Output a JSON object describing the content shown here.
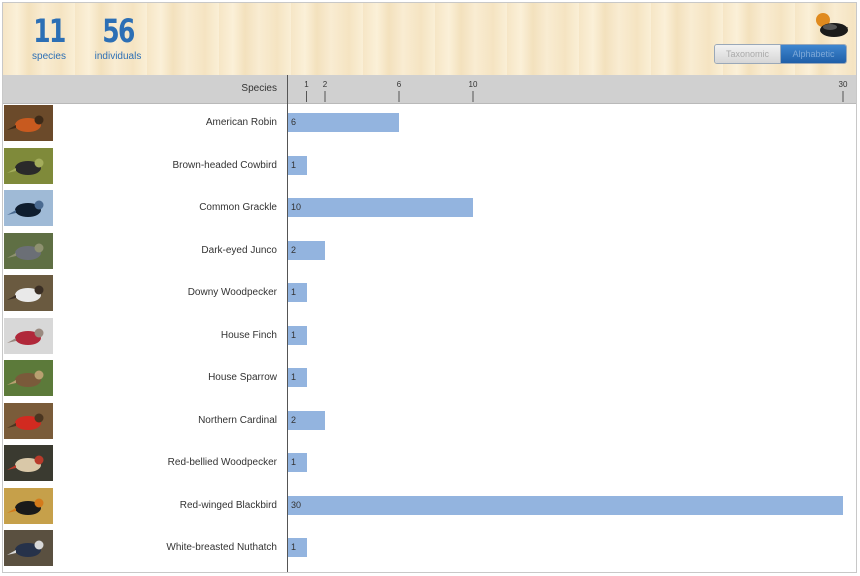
{
  "header": {
    "species_count": "11",
    "species_label": "species",
    "individuals_count": "56",
    "individuals_label": "individuals",
    "toggle": {
      "taxonomic": "Taxonomic",
      "alphabetic": "Alphabetic",
      "selected": "alphabetic"
    },
    "logo_icon": "ebird-logo-icon"
  },
  "table": {
    "species_header": "Species"
  },
  "colors": {
    "bar": "#93b4df",
    "accent": "#2c6fb5",
    "axis_band": "#d0d0d0"
  },
  "chart_data": {
    "type": "bar",
    "orientation": "horizontal",
    "categories": [
      "American Robin",
      "Brown-headed Cowbird",
      "Common Grackle",
      "Dark-eyed Junco",
      "Downy Woodpecker",
      "House Finch",
      "House Sparrow",
      "Northern Cardinal",
      "Red-bellied Woodpecker",
      "Red-winged Blackbird",
      "White-breasted Nuthatch"
    ],
    "values": [
      6,
      1,
      10,
      2,
      1,
      1,
      1,
      2,
      1,
      30,
      1
    ],
    "ticks": [
      1,
      2,
      6,
      10,
      30
    ],
    "xlim": [
      0,
      30
    ],
    "xlabel": "",
    "ylabel": "Species",
    "title": "",
    "grid": false,
    "legend": "none"
  }
}
